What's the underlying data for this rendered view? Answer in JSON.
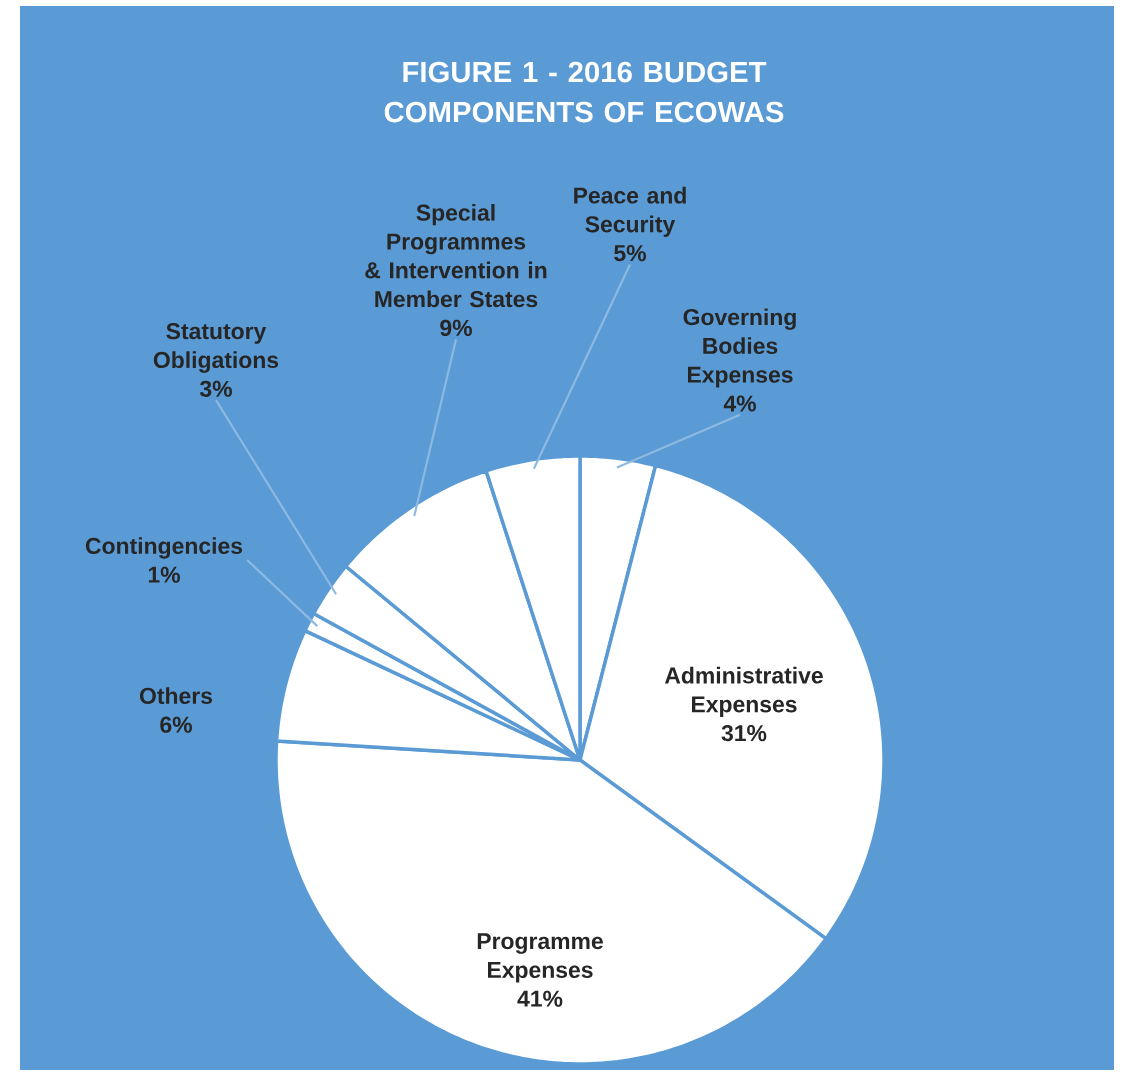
{
  "chart_data": {
    "type": "pie",
    "title": "FIGURE 1  - 2016 BUDGET COMPONENTS OF ECOWAS",
    "categories": [
      "Governing Bodies Expenses",
      "Administrative Expenses",
      "Programme Expenses",
      "Others",
      "Contingencies",
      "Statutory Obligations",
      "Special Programmes & Intervention in Member States",
      "Peace and Security"
    ],
    "values": [
      4,
      31,
      41,
      6,
      1,
      3,
      9,
      5
    ],
    "value_labels": [
      "4%",
      "31%",
      "41%",
      "6%",
      "1%",
      "3%",
      "9%",
      "5%"
    ],
    "colors": [
      "#ffffff",
      "#ffffff",
      "#ffffff",
      "#ffffff",
      "#ffffff",
      "#ffffff",
      "#ffffff",
      "#ffffff"
    ]
  }
}
